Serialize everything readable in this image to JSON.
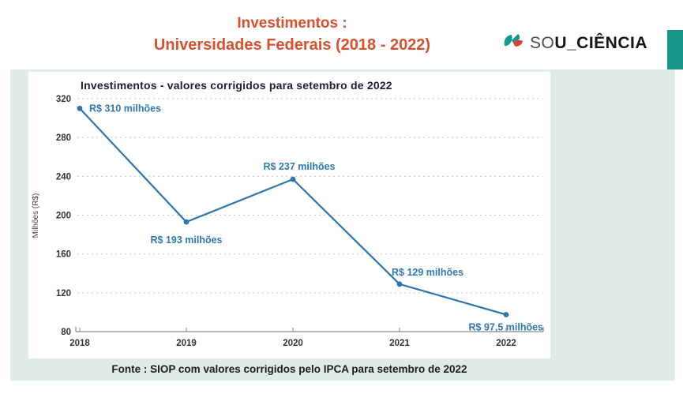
{
  "header": {
    "title_line1": "Investimentos :",
    "title_line2": "Universidades Federais (2018 - 2022)",
    "logo": {
      "prefix": "SO",
      "suffix": "U_CIÊNCIA"
    }
  },
  "chart_data": {
    "type": "line",
    "title": "Investimentos - valores corrigidos para setembro de 2022",
    "categories": [
      "2018",
      "2019",
      "2020",
      "2021",
      "2022"
    ],
    "values": [
      310,
      193,
      237,
      129,
      97.5
    ],
    "point_labels": [
      "R$ 310 milhões",
      "R$ 193 milhões",
      "R$ 237 milhões",
      "R$ 129 milhões",
      "R$ 97,5 milhões"
    ],
    "xlabel": "",
    "ylabel": "Milhões (R$)",
    "yticks": [
      80,
      120,
      160,
      200,
      240,
      280,
      320
    ],
    "ylim": [
      80,
      320
    ],
    "grid": "horizontal-dashed",
    "legend": "none",
    "line_color": "#2e74ad"
  },
  "footer": {
    "source": "Fonte : SIOP com valores corrigidos pelo IPCA para setembro de 2022"
  },
  "colors": {
    "slide_title": "#d8512c",
    "accent_teal": "#17988a",
    "panel_mint": "#dfebe7",
    "series_blue": "#2e74ad",
    "logo_red": "#d8403a"
  }
}
